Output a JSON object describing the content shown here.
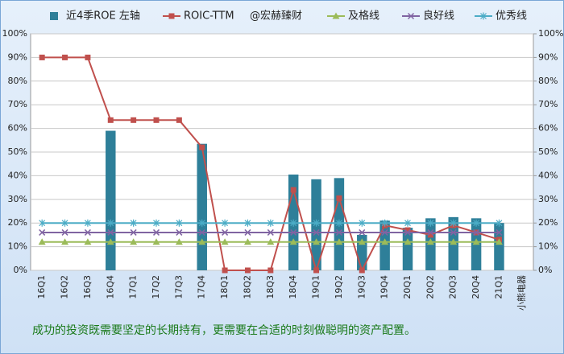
{
  "chart_data": {
    "type": "bar",
    "watermark": "@宏赫臻财",
    "annotation": "成功的投资既需要坚定的长期持有，更需要在合适的时刻做聪明的资产配置。",
    "categories": [
      "16Q1",
      "16Q2",
      "16Q3",
      "16Q4",
      "17Q1",
      "17Q2",
      "17Q3",
      "17Q4",
      "18Q1",
      "18Q2",
      "18Q3",
      "18Q4",
      "19Q1",
      "19Q2",
      "19Q3",
      "19Q4",
      "20Q1",
      "20Q2",
      "20Q3",
      "20Q4",
      "21Q1",
      "小熊电器"
    ],
    "series": [
      {
        "name": "近4季ROE 左轴",
        "type": "bar",
        "color": "#2e7f99",
        "values": [
          null,
          null,
          null,
          59,
          null,
          null,
          null,
          53.5,
          null,
          null,
          null,
          40.5,
          38.5,
          39,
          15,
          21,
          18,
          22,
          22.5,
          22,
          20,
          null
        ]
      },
      {
        "name": "ROIC-TTM",
        "type": "line",
        "marker": "square",
        "color": "#c0504d",
        "values": [
          90,
          90,
          90,
          63.5,
          63.5,
          63.5,
          63.5,
          52,
          0,
          0,
          0,
          34,
          0,
          30.5,
          0,
          19,
          17,
          15,
          19,
          16,
          13,
          null
        ]
      },
      {
        "name": "及格线",
        "type": "line",
        "marker": "triangle",
        "color": "#9bbb59",
        "values": [
          12,
          12,
          12,
          12,
          12,
          12,
          12,
          12,
          12,
          12,
          12,
          12,
          12,
          12,
          12,
          12,
          12,
          12,
          12,
          12,
          12,
          null
        ]
      },
      {
        "name": "良好线",
        "type": "line",
        "marker": "x",
        "color": "#8064a2",
        "values": [
          16,
          16,
          16,
          16,
          16,
          16,
          16,
          16,
          16,
          16,
          16,
          16,
          16,
          16,
          16,
          16,
          16,
          16,
          16,
          16,
          16,
          null
        ]
      },
      {
        "name": "优秀线",
        "type": "line",
        "marker": "star",
        "color": "#4bacc6",
        "values": [
          20,
          20,
          20,
          20,
          20,
          20,
          20,
          20,
          20,
          20,
          20,
          20,
          20,
          20,
          20,
          20,
          20,
          20,
          20,
          20,
          20,
          null
        ]
      }
    ],
    "ylim": [
      0,
      100
    ],
    "yticks": [
      {
        "value": 0,
        "label": "0%"
      },
      {
        "value": 10,
        "label": "10%"
      },
      {
        "value": 20,
        "label": "20%"
      },
      {
        "value": 30,
        "label": "30%"
      },
      {
        "value": 40,
        "label": "40%"
      },
      {
        "value": 50,
        "label": "50%"
      },
      {
        "value": 60,
        "label": "60%"
      },
      {
        "value": 70,
        "label": "70%"
      },
      {
        "value": 80,
        "label": "80%"
      },
      {
        "value": 90,
        "label": "90%"
      },
      {
        "value": 100,
        "label": "100%"
      }
    ],
    "y2lim": [
      0,
      100
    ],
    "y2ticks": [
      {
        "value": 0,
        "label": "0%"
      },
      {
        "value": 10,
        "label": "10%"
      },
      {
        "value": 20,
        "label": "20%"
      },
      {
        "value": 30,
        "label": "30%"
      },
      {
        "value": 40,
        "label": "40%"
      },
      {
        "value": 50,
        "label": "50%"
      },
      {
        "value": 60,
        "label": "60%"
      },
      {
        "value": 70,
        "label": "70%"
      },
      {
        "value": 80,
        "label": "80%"
      },
      {
        "value": 90,
        "label": "90%"
      },
      {
        "value": 100,
        "label": "100%"
      }
    ],
    "grid": true
  }
}
